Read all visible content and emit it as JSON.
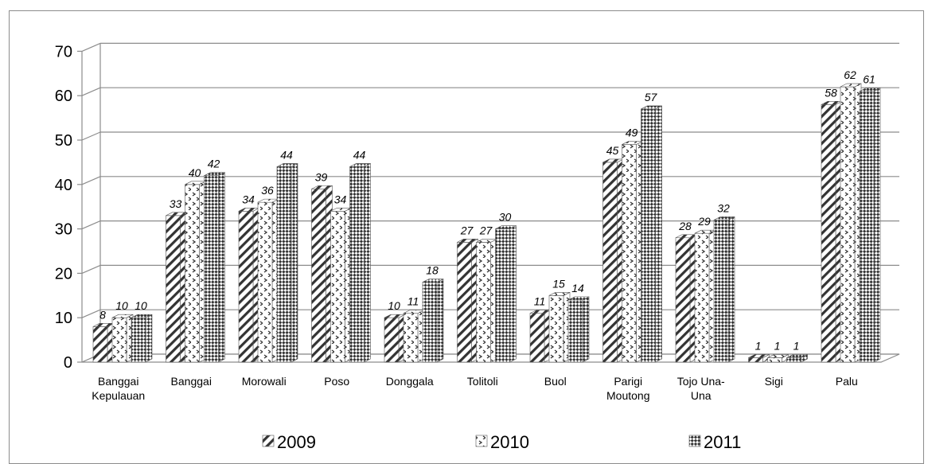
{
  "chart_data": {
    "type": "bar",
    "title": "",
    "xlabel": "",
    "ylabel": "",
    "ylim": [
      0,
      70
    ],
    "yticks": [
      "0",
      "10",
      "20",
      "30",
      "40",
      "50",
      "60",
      "70"
    ],
    "grid": true,
    "legend_position": "bottom",
    "categories": [
      [
        "Banggai",
        "Kepulauan"
      ],
      [
        "Banggai"
      ],
      [
        "Morowali"
      ],
      [
        "Poso"
      ],
      [
        "Donggala"
      ],
      [
        "Tolitoli"
      ],
      [
        "Buol"
      ],
      [
        "Parigi",
        "Moutong"
      ],
      [
        "Tojo Una-",
        "Una"
      ],
      [
        "Sigi"
      ],
      [
        "Palu"
      ]
    ],
    "series": [
      {
        "name": "2009",
        "pattern": "diagonal-hatch",
        "values": [
          8,
          33,
          34,
          39,
          10,
          27,
          11,
          45,
          28,
          1,
          58
        ]
      },
      {
        "name": "2010",
        "pattern": "chevron-dots",
        "values": [
          10,
          40,
          36,
          34,
          11,
          27,
          15,
          49,
          29,
          1,
          62
        ]
      },
      {
        "name": "2011",
        "pattern": "checker",
        "values": [
          10,
          42,
          44,
          44,
          18,
          30,
          14,
          57,
          32,
          1,
          61
        ]
      }
    ]
  }
}
